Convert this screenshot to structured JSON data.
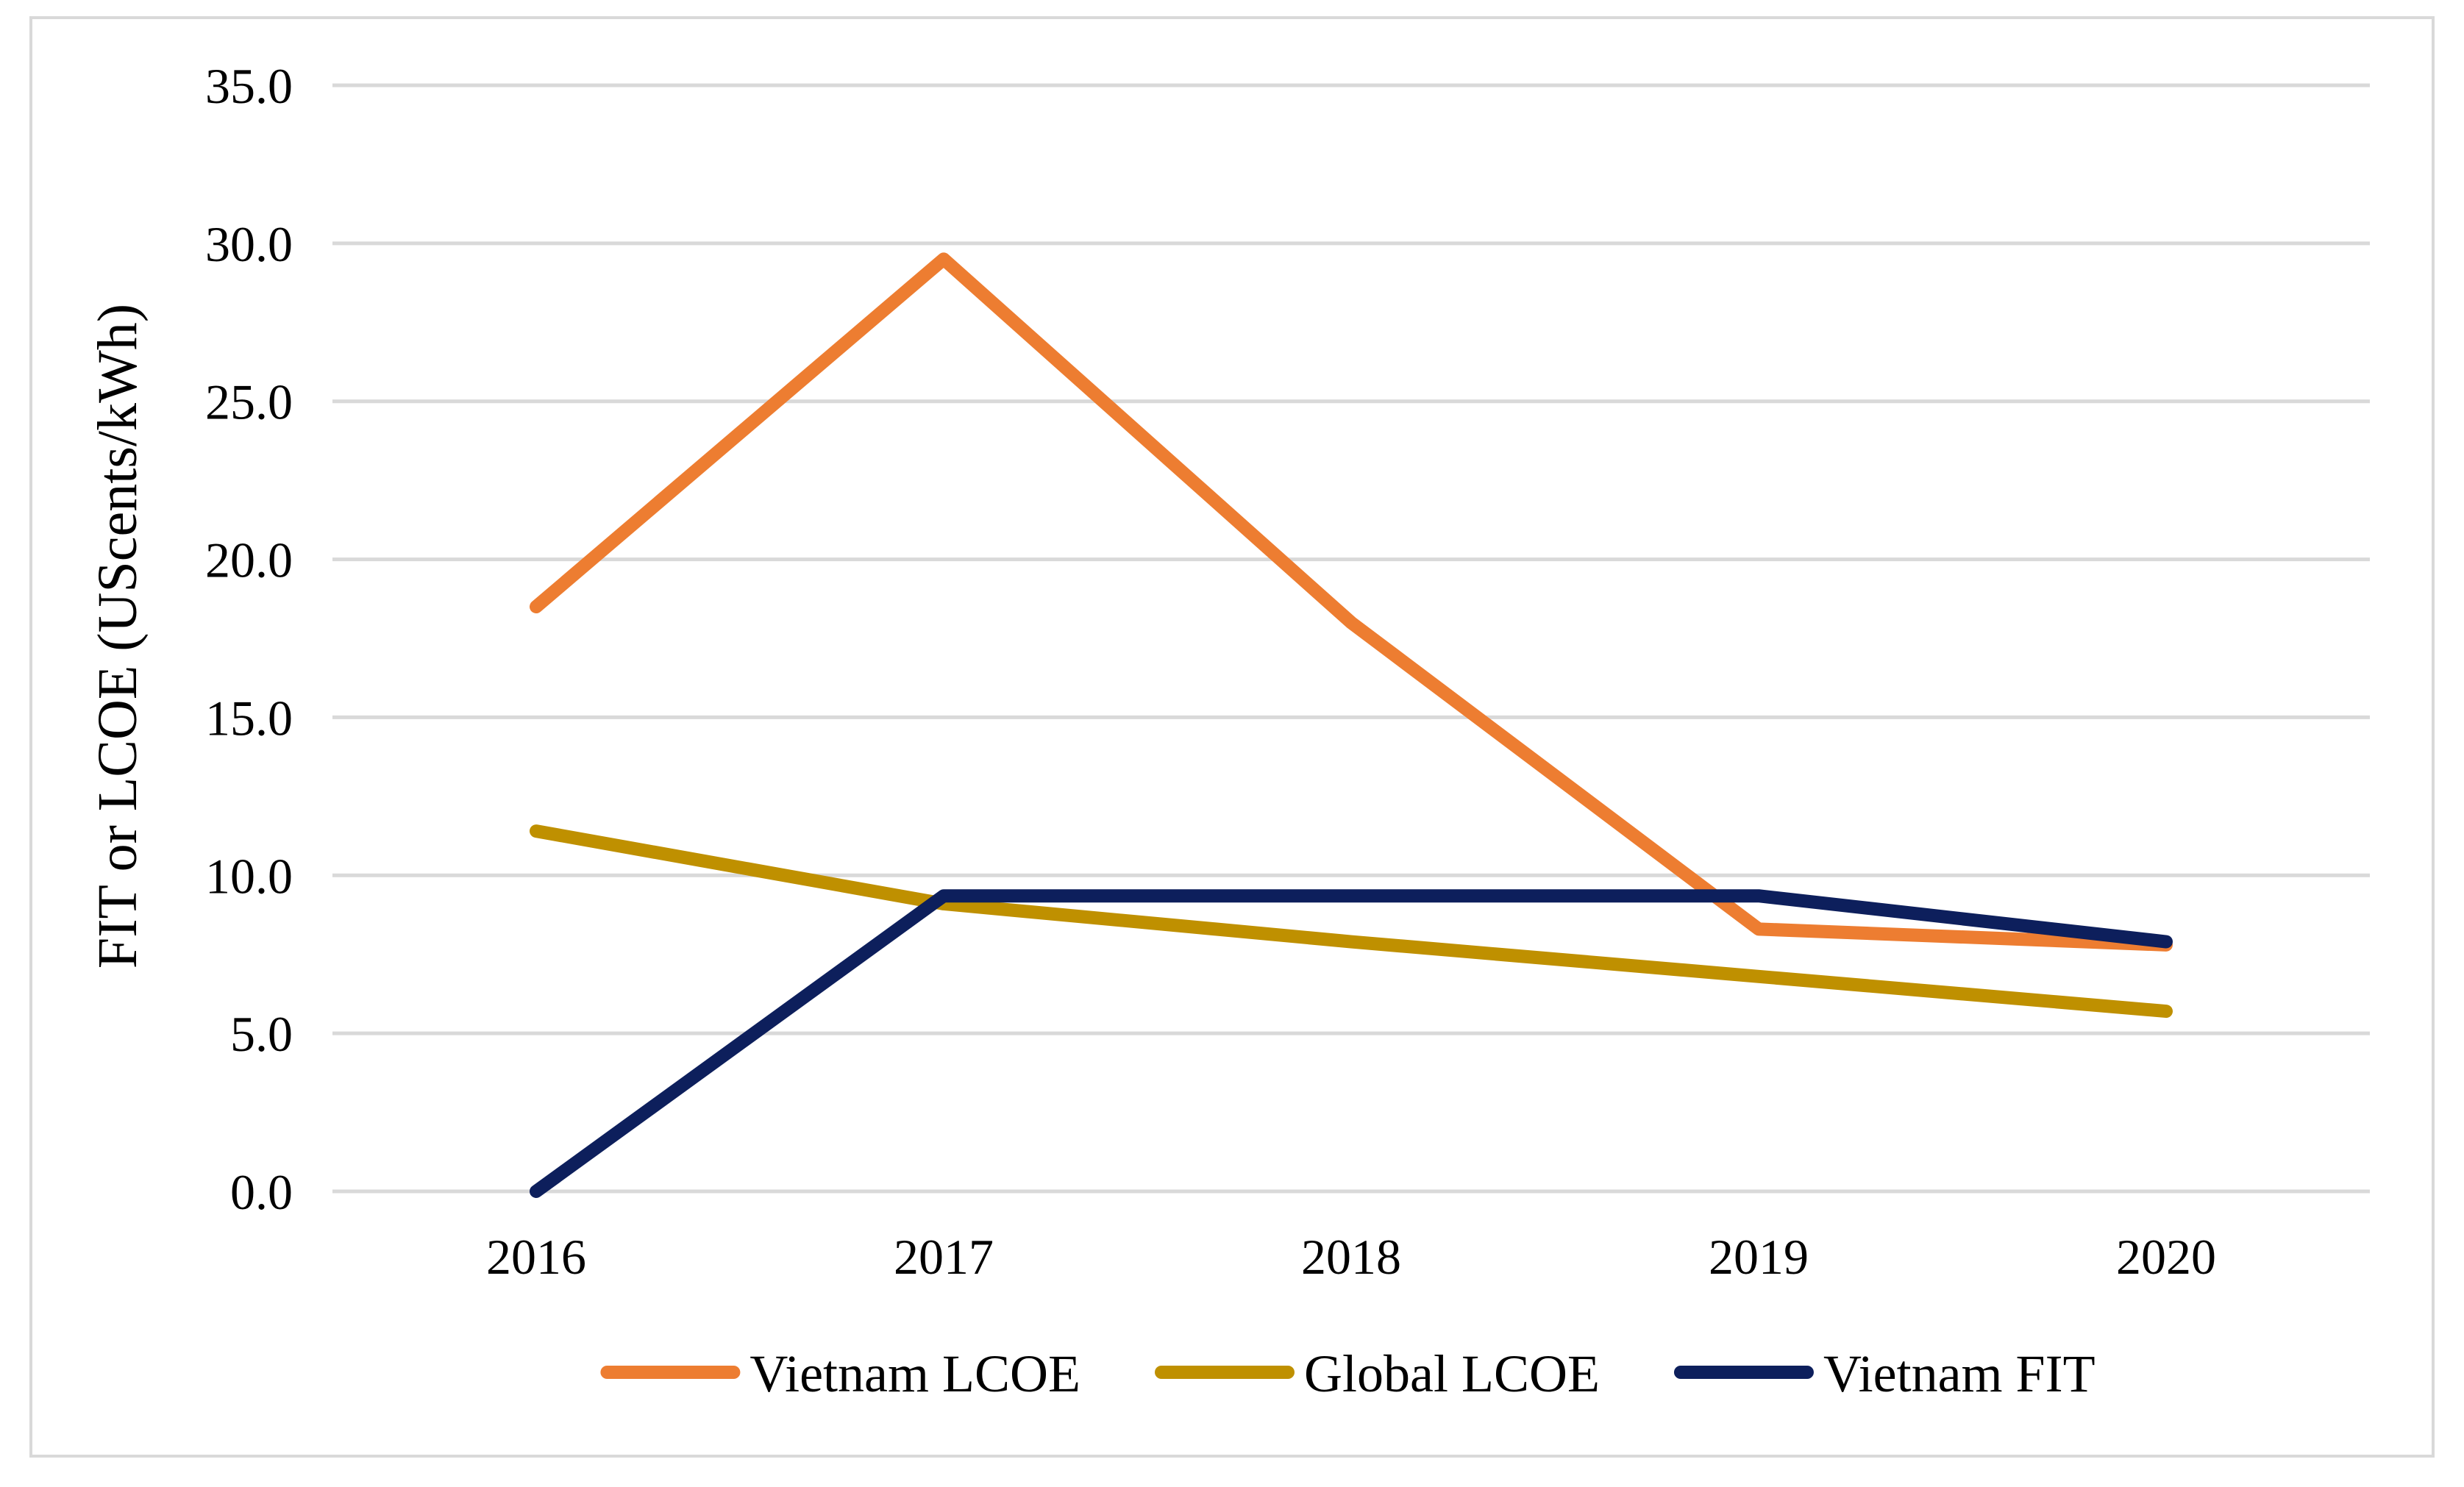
{
  "chart_data": {
    "type": "line",
    "title": "",
    "xlabel": "",
    "ylabel": "FIT or LCOE (UScents/kWh)",
    "categories": [
      "2016",
      "2017",
      "2018",
      "2019",
      "2020"
    ],
    "y_ticks": [
      "0.0",
      "5.0",
      "10.0",
      "15.0",
      "20.0",
      "25.0",
      "30.0",
      "35.0"
    ],
    "ylim": [
      0,
      35
    ],
    "grid": true,
    "legend_position": "bottom",
    "series": [
      {
        "name": "Vietnam LCOE",
        "color": "#ED7D31",
        "values": [
          18.5,
          29.5,
          18.0,
          8.3,
          7.8
        ]
      },
      {
        "name": "Global LCOE",
        "color": "#BF9000",
        "values": [
          11.4,
          9.1,
          7.9,
          6.8,
          5.7
        ]
      },
      {
        "name": "Vietnam FIT",
        "color": "#0D1F5C",
        "values": [
          0.0,
          9.35,
          9.35,
          9.35,
          7.9
        ]
      }
    ]
  }
}
